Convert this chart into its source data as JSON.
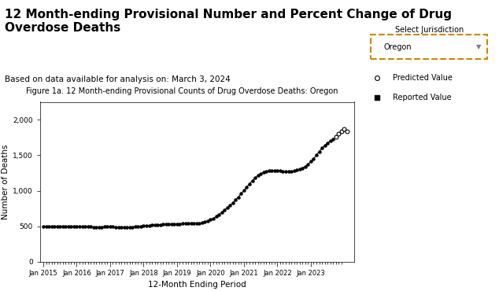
{
  "title_main": "12 Month-ending Provisional Number and Percent Change of Drug\nOverdose Deaths",
  "subtitle": "Based on data available for analysis on: March 3, 2024",
  "fig_title": "Figure 1a. 12 Month-ending Provisional Counts of Drug Overdose Deaths: Oregon",
  "xlabel": "12-Month Ending Period",
  "ylabel": "Number of Deaths",
  "ylim": [
    0,
    2250
  ],
  "yticks": [
    0,
    500,
    1000,
    1500,
    2000
  ],
  "ytick_labels": [
    "0",
    "500",
    "1,000",
    "1,500",
    "2,000"
  ],
  "bg_color": "#ffffff",
  "fig_title_bg": "#add8e6",
  "legend_items": [
    "Predicted Value",
    "Reported Value"
  ],
  "dropdown_label": "Select Jurisdiction",
  "dropdown_value": "Oregon",
  "reported_color": "#000000",
  "predicted_color": "#ffffff",
  "reported_data": [
    [
      2015,
      1,
      502
    ],
    [
      2015,
      2,
      500
    ],
    [
      2015,
      3,
      499
    ],
    [
      2015,
      4,
      501
    ],
    [
      2015,
      5,
      499
    ],
    [
      2015,
      6,
      498
    ],
    [
      2015,
      7,
      500
    ],
    [
      2015,
      8,
      502
    ],
    [
      2015,
      9,
      501
    ],
    [
      2015,
      10,
      499
    ],
    [
      2015,
      11,
      500
    ],
    [
      2015,
      12,
      502
    ],
    [
      2016,
      1,
      501
    ],
    [
      2016,
      2,
      500
    ],
    [
      2016,
      3,
      497
    ],
    [
      2016,
      4,
      496
    ],
    [
      2016,
      5,
      495
    ],
    [
      2016,
      6,
      493
    ],
    [
      2016,
      7,
      492
    ],
    [
      2016,
      8,
      491
    ],
    [
      2016,
      9,
      490
    ],
    [
      2016,
      10,
      492
    ],
    [
      2016,
      11,
      493
    ],
    [
      2016,
      12,
      495
    ],
    [
      2017,
      1,
      496
    ],
    [
      2017,
      2,
      494
    ],
    [
      2017,
      3,
      492
    ],
    [
      2017,
      4,
      490
    ],
    [
      2017,
      5,
      489
    ],
    [
      2017,
      6,
      488
    ],
    [
      2017,
      7,
      487
    ],
    [
      2017,
      8,
      489
    ],
    [
      2017,
      9,
      491
    ],
    [
      2017,
      10,
      495
    ],
    [
      2017,
      11,
      498
    ],
    [
      2017,
      12,
      502
    ],
    [
      2018,
      1,
      506
    ],
    [
      2018,
      2,
      510
    ],
    [
      2018,
      3,
      514
    ],
    [
      2018,
      4,
      518
    ],
    [
      2018,
      5,
      520
    ],
    [
      2018,
      6,
      522
    ],
    [
      2018,
      7,
      524
    ],
    [
      2018,
      8,
      526
    ],
    [
      2018,
      9,
      527
    ],
    [
      2018,
      10,
      528
    ],
    [
      2018,
      11,
      530
    ],
    [
      2018,
      12,
      533
    ],
    [
      2019,
      1,
      535
    ],
    [
      2019,
      2,
      536
    ],
    [
      2019,
      3,
      537
    ],
    [
      2019,
      4,
      538
    ],
    [
      2019,
      5,
      539
    ],
    [
      2019,
      6,
      540
    ],
    [
      2019,
      7,
      541
    ],
    [
      2019,
      8,
      542
    ],
    [
      2019,
      9,
      545
    ],
    [
      2019,
      10,
      550
    ],
    [
      2019,
      11,
      560
    ],
    [
      2019,
      12,
      575
    ],
    [
      2020,
      1,
      592
    ],
    [
      2020,
      2,
      612
    ],
    [
      2020,
      3,
      638
    ],
    [
      2020,
      4,
      665
    ],
    [
      2020,
      5,
      695
    ],
    [
      2020,
      6,
      728
    ],
    [
      2020,
      7,
      762
    ],
    [
      2020,
      8,
      795
    ],
    [
      2020,
      9,
      830
    ],
    [
      2020,
      10,
      870
    ],
    [
      2020,
      11,
      912
    ],
    [
      2020,
      12,
      958
    ],
    [
      2021,
      1,
      1005
    ],
    [
      2021,
      2,
      1052
    ],
    [
      2021,
      3,
      1098
    ],
    [
      2021,
      4,
      1142
    ],
    [
      2021,
      5,
      1180
    ],
    [
      2021,
      6,
      1212
    ],
    [
      2021,
      7,
      1238
    ],
    [
      2021,
      8,
      1258
    ],
    [
      2021,
      9,
      1272
    ],
    [
      2021,
      10,
      1280
    ],
    [
      2021,
      11,
      1285
    ],
    [
      2021,
      12,
      1285
    ],
    [
      2022,
      1,
      1282
    ],
    [
      2022,
      2,
      1278
    ],
    [
      2022,
      3,
      1275
    ],
    [
      2022,
      4,
      1272
    ],
    [
      2022,
      5,
      1272
    ],
    [
      2022,
      6,
      1272
    ],
    [
      2022,
      7,
      1280
    ],
    [
      2022,
      8,
      1290
    ],
    [
      2022,
      9,
      1305
    ],
    [
      2022,
      10,
      1320
    ],
    [
      2022,
      11,
      1342
    ],
    [
      2022,
      12,
      1370
    ],
    [
      2023,
      1,
      1410
    ],
    [
      2023,
      2,
      1452
    ],
    [
      2023,
      3,
      1500
    ],
    [
      2023,
      4,
      1552
    ],
    [
      2023,
      5,
      1598
    ],
    [
      2023,
      6,
      1638
    ],
    [
      2023,
      7,
      1672
    ],
    [
      2023,
      8,
      1700
    ],
    [
      2023,
      9,
      1720
    ]
  ],
  "predicted_data": [
    [
      2023,
      10,
      1755
    ],
    [
      2023,
      11,
      1800
    ],
    [
      2023,
      12,
      1830
    ],
    [
      2024,
      1,
      1870
    ],
    [
      2024,
      2,
      1840
    ]
  ]
}
